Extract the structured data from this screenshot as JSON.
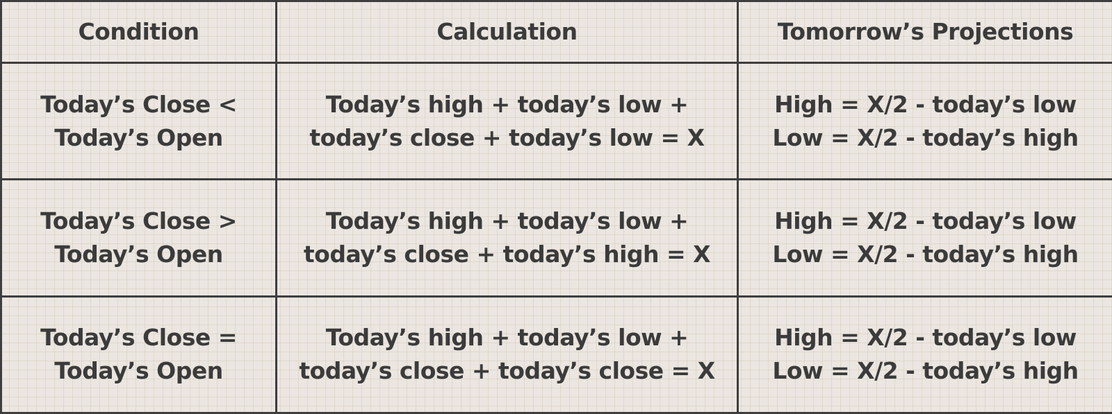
{
  "table": {
    "headers": [
      "Condition",
      "Calculation",
      "Tomorrow’s Projections"
    ],
    "rows": [
      {
        "condition": [
          "Today’s Close <",
          "Today’s Open"
        ],
        "calculation": [
          "Today’s high + today’s low +",
          "today’s close + today’s low = X"
        ],
        "projection": [
          "High = X/2 - today’s low",
          "Low = X/2 - today’s high"
        ]
      },
      {
        "condition": [
          "Today’s Close >",
          "Today’s Open"
        ],
        "calculation": [
          "Today’s high + today’s low +",
          "today’s close + today’s high = X"
        ],
        "projection": [
          "High = X/2 - today’s low",
          "Low = X/2 - today’s high"
        ]
      },
      {
        "condition": [
          "Today’s Close =",
          "Today’s Open"
        ],
        "calculation": [
          "Today’s high + today’s low +",
          "today’s close + today’s close = X"
        ],
        "projection": [
          "High = X/2 - today’s low",
          "Low = X/2 - today’s high"
        ]
      }
    ]
  },
  "colors": {
    "border": "#3e3e3e",
    "text": "#3b3b3b",
    "background": "#ebe6e1"
  }
}
